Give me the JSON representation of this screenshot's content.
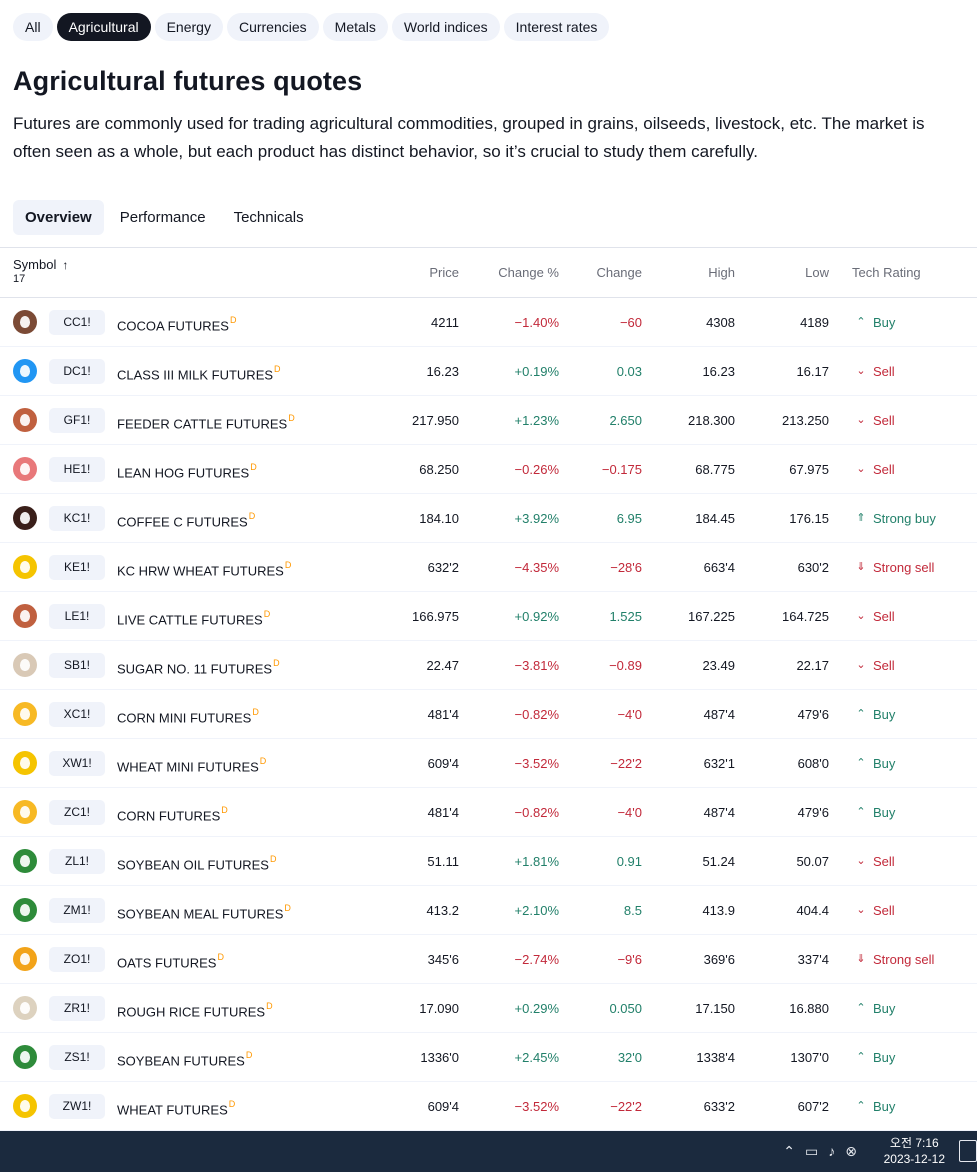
{
  "filters": [
    "All",
    "Agricultural",
    "Energy",
    "Currencies",
    "Metals",
    "World indices",
    "Interest rates"
  ],
  "active_filter": 1,
  "page_title": "Agricultural futures quotes",
  "description": "Futures are commonly used for trading agricultural commodities, grouped in grains, oilseeds, livestock, etc. The market is often seen as a whole, but each product has distinct behavior, so it’s crucial to study them carefully.",
  "tabs": [
    "Overview",
    "Performance",
    "Technicals"
  ],
  "active_tab": 0,
  "table": {
    "headers": {
      "symbol": "Symbol",
      "count": "17",
      "price": "Price",
      "change_pct": "Change %",
      "change": "Change",
      "high": "High",
      "low": "Low",
      "tech_rating": "Tech Rating"
    },
    "delayed_marker": "D",
    "rows": [
      {
        "ticker": "CC1!",
        "name": "COCOA FUTURES",
        "icon": "cocoa-icon",
        "color": "#7b4a35",
        "price": "4211",
        "change_pct": "−1.40%",
        "change": "−60",
        "high": "4308",
        "low": "4189",
        "rating": "Buy",
        "dir": "neg",
        "rating_type": "buy"
      },
      {
        "ticker": "DC1!",
        "name": "CLASS III MILK FUTURES",
        "icon": "milk-icon",
        "color": "#2196f3",
        "price": "16.23",
        "change_pct": "+0.19%",
        "change": "0.03",
        "high": "16.23",
        "low": "16.17",
        "rating": "Sell",
        "dir": "pos",
        "rating_type": "sell"
      },
      {
        "ticker": "GF1!",
        "name": "FEEDER CATTLE FUTURES",
        "icon": "cattle-icon",
        "color": "#c0603f",
        "price": "217.950",
        "change_pct": "+1.23%",
        "change": "2.650",
        "high": "218.300",
        "low": "213.250",
        "rating": "Sell",
        "dir": "pos",
        "rating_type": "sell"
      },
      {
        "ticker": "HE1!",
        "name": "LEAN HOG FUTURES",
        "icon": "hog-icon",
        "color": "#e8787a",
        "price": "68.250",
        "change_pct": "−0.26%",
        "change": "−0.175",
        "high": "68.775",
        "low": "67.975",
        "rating": "Sell",
        "dir": "neg",
        "rating_type": "sell"
      },
      {
        "ticker": "KC1!",
        "name": "COFFEE C FUTURES",
        "icon": "coffee-icon",
        "color": "#3a1f1a",
        "price": "184.10",
        "change_pct": "+3.92%",
        "change": "6.95",
        "high": "184.45",
        "low": "176.15",
        "rating": "Strong buy",
        "dir": "pos",
        "rating_type": "strong-buy"
      },
      {
        "ticker": "KE1!",
        "name": "KC HRW WHEAT FUTURES",
        "icon": "wheat-icon",
        "color": "#f5c400",
        "price": "632'2",
        "change_pct": "−4.35%",
        "change": "−28'6",
        "high": "663'4",
        "low": "630'2",
        "rating": "Strong sell",
        "dir": "neg",
        "rating_type": "strong-sell"
      },
      {
        "ticker": "LE1!",
        "name": "LIVE CATTLE FUTURES",
        "icon": "cattle-icon",
        "color": "#c0603f",
        "price": "166.975",
        "change_pct": "+0.92%",
        "change": "1.525",
        "high": "167.225",
        "low": "164.725",
        "rating": "Sell",
        "dir": "pos",
        "rating_type": "sell"
      },
      {
        "ticker": "SB1!",
        "name": "SUGAR NO. 11 FUTURES",
        "icon": "sugar-icon",
        "color": "#d9c9b6",
        "price": "22.47",
        "change_pct": "−3.81%",
        "change": "−0.89",
        "high": "23.49",
        "low": "22.17",
        "rating": "Sell",
        "dir": "neg",
        "rating_type": "sell"
      },
      {
        "ticker": "XC1!",
        "name": "CORN MINI FUTURES",
        "icon": "corn-icon",
        "color": "#f7b924",
        "price": "481'4",
        "change_pct": "−0.82%",
        "change": "−4'0",
        "high": "487'4",
        "low": "479'6",
        "rating": "Buy",
        "dir": "neg",
        "rating_type": "buy"
      },
      {
        "ticker": "XW1!",
        "name": "WHEAT MINI FUTURES",
        "icon": "wheat-icon",
        "color": "#f5c400",
        "price": "609'4",
        "change_pct": "−3.52%",
        "change": "−22'2",
        "high": "632'1",
        "low": "608'0",
        "rating": "Buy",
        "dir": "neg",
        "rating_type": "buy"
      },
      {
        "ticker": "ZC1!",
        "name": "CORN FUTURES",
        "icon": "corn-icon",
        "color": "#f7b924",
        "price": "481'4",
        "change_pct": "−0.82%",
        "change": "−4'0",
        "high": "487'4",
        "low": "479'6",
        "rating": "Buy",
        "dir": "neg",
        "rating_type": "buy"
      },
      {
        "ticker": "ZL1!",
        "name": "SOYBEAN OIL FUTURES",
        "icon": "soybean-oil-icon",
        "color": "#2e8b3a",
        "price": "51.11",
        "change_pct": "+1.81%",
        "change": "0.91",
        "high": "51.24",
        "low": "50.07",
        "rating": "Sell",
        "dir": "pos",
        "rating_type": "sell"
      },
      {
        "ticker": "ZM1!",
        "name": "SOYBEAN MEAL FUTURES",
        "icon": "soybean-meal-icon",
        "color": "#2e8b3a",
        "price": "413.2",
        "change_pct": "+2.10%",
        "change": "8.5",
        "high": "413.9",
        "low": "404.4",
        "rating": "Sell",
        "dir": "pos",
        "rating_type": "sell"
      },
      {
        "ticker": "ZO1!",
        "name": "OATS FUTURES",
        "icon": "oats-icon",
        "color": "#f2a319",
        "price": "345'6",
        "change_pct": "−2.74%",
        "change": "−9'6",
        "high": "369'6",
        "low": "337'4",
        "rating": "Strong sell",
        "dir": "neg",
        "rating_type": "strong-sell"
      },
      {
        "ticker": "ZR1!",
        "name": "ROUGH RICE FUTURES",
        "icon": "rice-icon",
        "color": "#ddd2bf",
        "price": "17.090",
        "change_pct": "+0.29%",
        "change": "0.050",
        "high": "17.150",
        "low": "16.880",
        "rating": "Buy",
        "dir": "pos",
        "rating_type": "buy"
      },
      {
        "ticker": "ZS1!",
        "name": "SOYBEAN FUTURES",
        "icon": "soybean-icon",
        "color": "#2e8b3a",
        "price": "1336'0",
        "change_pct": "+2.45%",
        "change": "32'0",
        "high": "1338'4",
        "low": "1307'0",
        "rating": "Buy",
        "dir": "pos",
        "rating_type": "buy"
      },
      {
        "ticker": "ZW1!",
        "name": "WHEAT FUTURES",
        "icon": "wheat-icon",
        "color": "#f5c400",
        "price": "609'4",
        "change_pct": "−3.52%",
        "change": "−22'2",
        "high": "633'2",
        "low": "607'2",
        "rating": "Buy",
        "dir": "neg",
        "rating_type": "buy"
      }
    ]
  },
  "taskbar": {
    "time": "오전 7:16",
    "date": "2023-12-12"
  },
  "colors": {
    "positive": "#22806a",
    "negative": "#c2293a",
    "chip_active": "#131722",
    "chip": "#f0f3fa",
    "taskbar": "#1b2a3e"
  }
}
